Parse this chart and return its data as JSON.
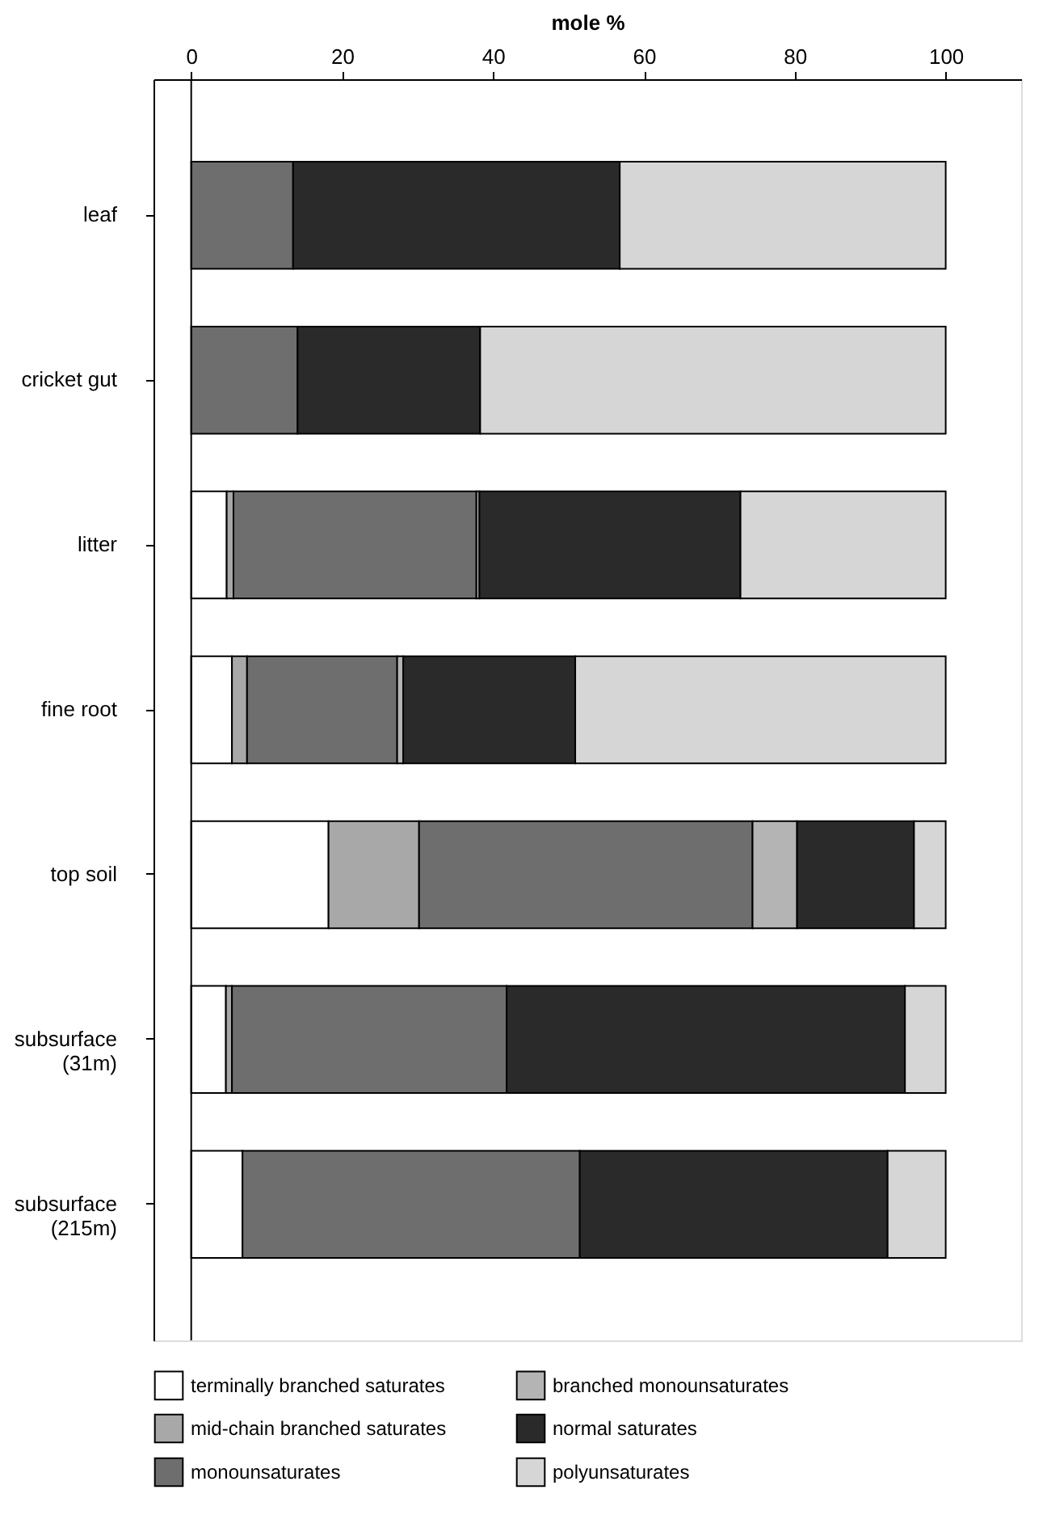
{
  "chart_data": {
    "type": "bar",
    "orientation": "horizontal",
    "stacked": true,
    "xlabel": "mole %",
    "categories": [
      "leaf",
      "cricket gut",
      "litter",
      "fine root",
      "top soil",
      "subsurface\n(31m)",
      "subsurface\n(215m)"
    ],
    "xlim": [
      -5,
      110
    ],
    "xticks": [
      0,
      20,
      40,
      60,
      80,
      100
    ],
    "grid": false,
    "legend": "bottom",
    "ref_lines": [
      {
        "axis": "x",
        "value": 0,
        "color": "#000000"
      }
    ],
    "series": [
      {
        "name": "terminally branched saturates",
        "color": "#ffffff",
        "values": [
          null,
          null,
          4.7,
          5.4,
          18.2,
          4.6,
          6.8
        ]
      },
      {
        "name": "mid-chain branched saturates",
        "color": "#a8a8a8",
        "values": [
          null,
          null,
          0.9,
          2.0,
          12.0,
          0.8,
          null
        ]
      },
      {
        "name": "monounsaturates",
        "color": "#6e6e6e",
        "values": [
          13.5,
          14.1,
          32.2,
          19.9,
          44.2,
          36.4,
          44.7
        ]
      },
      {
        "name": "branched monounsaturates",
        "color": "#b4b4b4",
        "values": [
          null,
          null,
          0.4,
          0.8,
          5.9,
          null,
          null
        ]
      },
      {
        "name": "normal saturates",
        "color": "#2a2a2a",
        "values": [
          43.3,
          24.2,
          34.6,
          22.8,
          15.5,
          52.8,
          40.8
        ]
      },
      {
        "name": "polyunsaturates",
        "color": "#d6d6d6",
        "values": [
          43.2,
          61.7,
          27.2,
          49.1,
          4.2,
          5.4,
          7.7
        ]
      }
    ]
  }
}
